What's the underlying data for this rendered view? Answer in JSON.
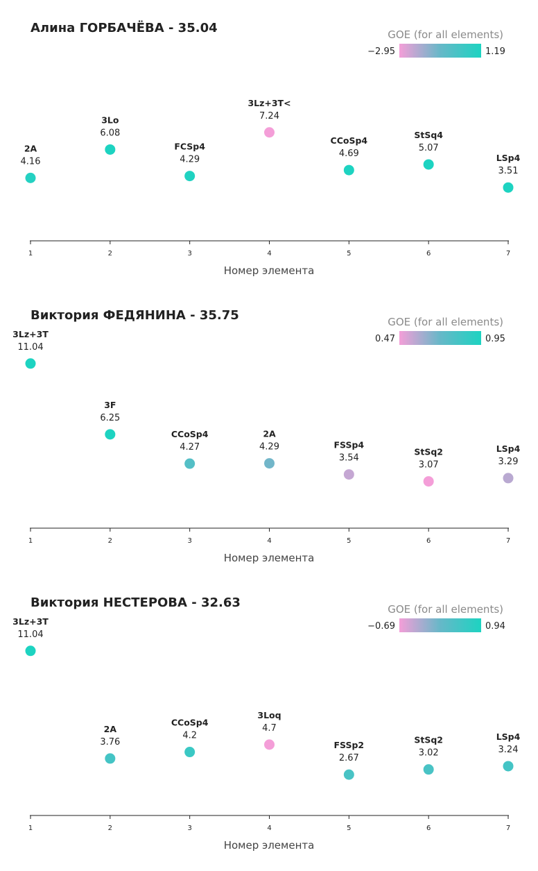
{
  "colors": {
    "neg": "#f49ed8",
    "mid": "#66b8c8",
    "pos": "#1dd3c1"
  },
  "chart_data": [
    {
      "type": "scatter",
      "title": "Алина ГОРБАЧЁВА - 35.04",
      "xlabel": "Номер элемента",
      "ylabel": "",
      "xlim": [
        1,
        7
      ],
      "ylim": [
        0,
        11.5
      ],
      "legend": {
        "title": "GOE (for all elements)",
        "min_label": "−2.95",
        "max_label": "1.19",
        "min": -2.95,
        "max": 1.19
      },
      "ticks": [
        "1",
        "2",
        "3",
        "4",
        "5",
        "6",
        "7"
      ],
      "points": [
        {
          "x": 1,
          "element": "2A",
          "score_label": "4.16",
          "score": 4.16,
          "goe": 1.0
        },
        {
          "x": 2,
          "element": "3Lo",
          "score_label": "6.08",
          "score": 6.08,
          "goe": 1.19
        },
        {
          "x": 3,
          "element": "FCSp4",
          "score_label": "4.29",
          "score": 4.29,
          "goe": 1.1
        },
        {
          "x": 4,
          "element": "3Lz+3T<",
          "score_label": "7.24",
          "score": 7.24,
          "goe": -2.95
        },
        {
          "x": 5,
          "element": "CCoSp4",
          "score_label": "4.69",
          "score": 4.69,
          "goe": 1.19
        },
        {
          "x": 6,
          "element": "StSq4",
          "score_label": "5.07",
          "score": 5.07,
          "goe": 1.19
        },
        {
          "x": 7,
          "element": "LSp4",
          "score_label": "3.51",
          "score": 3.51,
          "goe": 1.19
        }
      ]
    },
    {
      "type": "scatter",
      "title": "Виктория ФЕДЯНИНА - 35.75",
      "xlabel": "Номер элемента",
      "ylabel": "",
      "xlim": [
        1,
        7
      ],
      "ylim": [
        0,
        11.5
      ],
      "legend": {
        "title": "GOE (for all elements)",
        "min_label": "0.47",
        "max_label": "0.95",
        "min": 0.47,
        "max": 0.95
      },
      "ticks": [
        "1",
        "2",
        "3",
        "4",
        "5",
        "6",
        "7"
      ],
      "points": [
        {
          "x": 1,
          "element": "3Lz+3T",
          "score_label": "11.04",
          "score": 11.04,
          "goe": 0.95
        },
        {
          "x": 2,
          "element": "3F",
          "score_label": "6.25",
          "score": 6.25,
          "goe": 0.95
        },
        {
          "x": 3,
          "element": "CCoSp4",
          "score_label": "4.27",
          "score": 4.27,
          "goe": 0.77
        },
        {
          "x": 4,
          "element": "2A",
          "score_label": "4.29",
          "score": 4.29,
          "goe": 0.69
        },
        {
          "x": 5,
          "element": "FSSp4",
          "score_label": "3.54",
          "score": 3.54,
          "goe": 0.55
        },
        {
          "x": 6,
          "element": "StSq2",
          "score_label": "3.07",
          "score": 3.07,
          "goe": 0.47
        },
        {
          "x": 7,
          "element": "LSp4",
          "score_label": "3.29",
          "score": 3.29,
          "goe": 0.57
        }
      ]
    },
    {
      "type": "scatter",
      "title": "Виктория НЕСТЕРОВА - 32.63",
      "xlabel": "Номер элемента",
      "ylabel": "",
      "xlim": [
        1,
        7
      ],
      "ylim": [
        0,
        11.5
      ],
      "legend": {
        "title": "GOE (for all elements)",
        "min_label": "−0.69",
        "max_label": "0.94",
        "min": -0.69,
        "max": 0.94
      },
      "ticks": [
        "1",
        "2",
        "3",
        "4",
        "5",
        "6",
        "7"
      ],
      "points": [
        {
          "x": 1,
          "element": "3Lz+3T",
          "score_label": "11.04",
          "score": 11.04,
          "goe": 0.94
        },
        {
          "x": 2,
          "element": "2A",
          "score_label": "3.76",
          "score": 3.76,
          "goe": 0.5
        },
        {
          "x": 3,
          "element": "CCoSp4",
          "score_label": "4.2",
          "score": 4.2,
          "goe": 0.62
        },
        {
          "x": 4,
          "element": "3Loq",
          "score_label": "4.7",
          "score": 4.7,
          "goe": -0.69
        },
        {
          "x": 5,
          "element": "FSSp2",
          "score_label": "2.67",
          "score": 2.67,
          "goe": 0.45
        },
        {
          "x": 6,
          "element": "StSq2",
          "score_label": "3.02",
          "score": 3.02,
          "goe": 0.45
        },
        {
          "x": 7,
          "element": "LSp4",
          "score_label": "3.24",
          "score": 3.24,
          "goe": 0.5
        }
      ]
    }
  ]
}
